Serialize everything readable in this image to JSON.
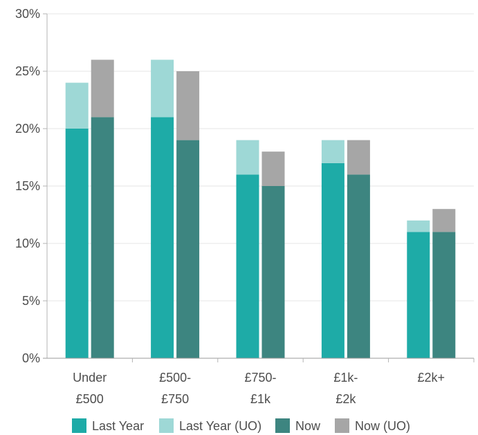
{
  "chart_data": {
    "type": "bar",
    "stacked_pairs": true,
    "categories": [
      [
        "Under",
        "£500"
      ],
      [
        "£500-",
        "£750"
      ],
      [
        "£750-",
        "£1k"
      ],
      [
        "£1k-",
        "£2k"
      ],
      [
        "£2k+"
      ]
    ],
    "series": [
      {
        "name": "Last Year",
        "values": [
          20,
          21,
          16,
          17,
          11
        ],
        "color": "#1eaba7",
        "stack": "last_year"
      },
      {
        "name": "Last Year (UO)",
        "values": [
          4,
          5,
          3,
          2,
          1
        ],
        "color": "#9ed8d6",
        "stack": "last_year"
      },
      {
        "name": "Now",
        "values": [
          21,
          19,
          15,
          16,
          11
        ],
        "color": "#3d8580",
        "stack": "now"
      },
      {
        "name": "Now (UO)",
        "values": [
          5,
          6,
          3,
          3,
          2
        ],
        "color": "#a6a6a6",
        "stack": "now"
      }
    ],
    "y_ticks": [
      "0%",
      "5%",
      "10%",
      "15%",
      "20%",
      "25%",
      "30%"
    ],
    "ylim": [
      0,
      30
    ],
    "grid": true,
    "legend_position": "bottom"
  }
}
